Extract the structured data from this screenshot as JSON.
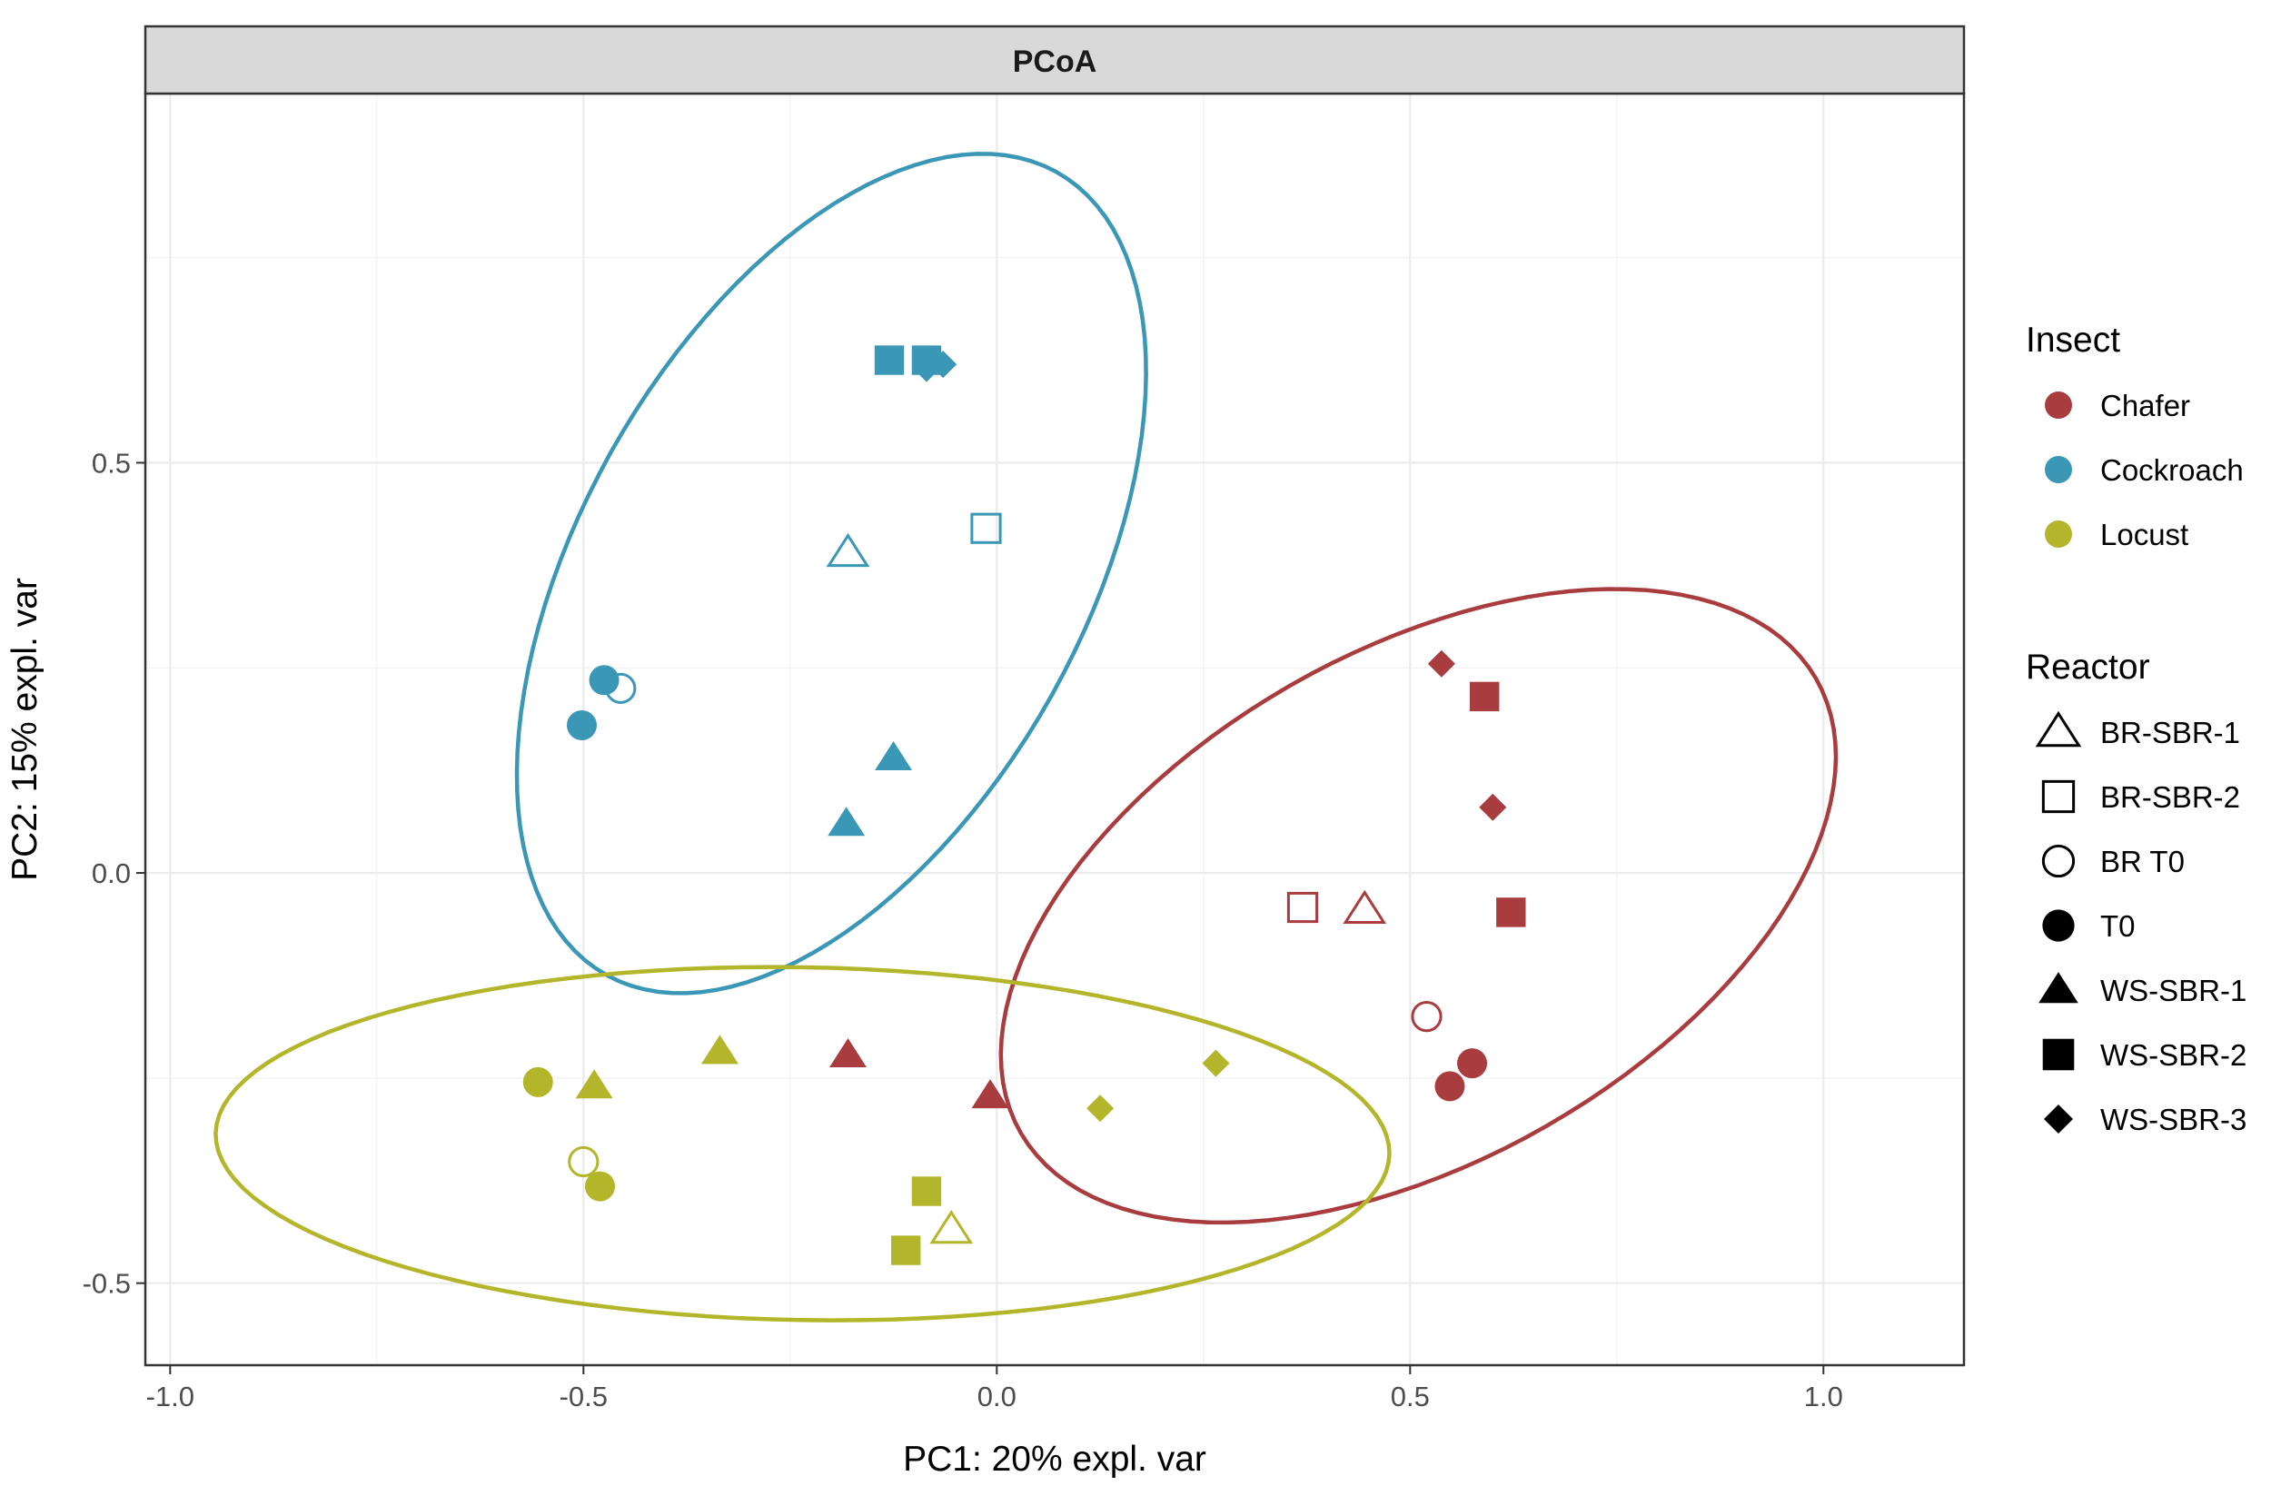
{
  "chart_data": {
    "type": "scatter",
    "title": "PCoA",
    "xlabel": "PC1: 20% expl. var",
    "ylabel": "PC2: 15% expl. var",
    "xlim": [
      -1.03,
      1.17
    ],
    "ylim": [
      -0.6,
      0.95
    ],
    "xticks": [
      {
        "value": -1.0,
        "label": "-1.0"
      },
      {
        "value": -0.5,
        "label": "-0.5"
      },
      {
        "value": 0.0,
        "label": "0.0"
      },
      {
        "value": 0.5,
        "label": "0.5"
      },
      {
        "value": 1.0,
        "label": "1.0"
      }
    ],
    "yticks": [
      {
        "value": -0.5,
        "label": "-0.5"
      },
      {
        "value": 0.0,
        "label": "0.0"
      },
      {
        "value": 0.5,
        "label": "0.5"
      }
    ],
    "grid": true,
    "insects": [
      {
        "name": "Chafer",
        "color": "#A93C3E"
      },
      {
        "name": "Cockroach",
        "color": "#3A97B6"
      },
      {
        "name": "Locust",
        "color": "#B3B62A"
      }
    ],
    "reactors": [
      {
        "name": "BR-SBR-1",
        "shape": "triangle-open"
      },
      {
        "name": "BR-SBR-2",
        "shape": "square-open"
      },
      {
        "name": "BR T0",
        "shape": "circle-open"
      },
      {
        "name": "T0",
        "shape": "circle"
      },
      {
        "name": "WS-SBR-1",
        "shape": "triangle"
      },
      {
        "name": "WS-SBR-2",
        "shape": "square"
      },
      {
        "name": "WS-SBR-3",
        "shape": "diamond"
      }
    ],
    "legend_titles": {
      "insect": "Insect",
      "reactor": "Reactor"
    },
    "legend_position": "right",
    "points": [
      {
        "insect": "Cockroach",
        "reactor": "WS-SBR-2",
        "x": -0.13,
        "y": 0.625
      },
      {
        "insect": "Cockroach",
        "reactor": "WS-SBR-2",
        "x": -0.085,
        "y": 0.625
      },
      {
        "insect": "Cockroach",
        "reactor": "WS-SBR-3",
        "x": -0.085,
        "y": 0.615
      },
      {
        "insect": "Cockroach",
        "reactor": "WS-SBR-3",
        "x": -0.065,
        "y": 0.62
      },
      {
        "insect": "Cockroach",
        "reactor": "BR-SBR-2",
        "x": -0.013,
        "y": 0.42
      },
      {
        "insect": "Cockroach",
        "reactor": "BR-SBR-1",
        "x": -0.18,
        "y": 0.39
      },
      {
        "insect": "Cockroach",
        "reactor": "T0",
        "x": -0.475,
        "y": 0.235
      },
      {
        "insect": "Cockroach",
        "reactor": "BR T0",
        "x": -0.455,
        "y": 0.225
      },
      {
        "insect": "Cockroach",
        "reactor": "T0",
        "x": -0.502,
        "y": 0.18
      },
      {
        "insect": "Cockroach",
        "reactor": "WS-SBR-1",
        "x": -0.125,
        "y": 0.14
      },
      {
        "insect": "Cockroach",
        "reactor": "WS-SBR-1",
        "x": -0.182,
        "y": 0.06
      },
      {
        "insect": "Chafer",
        "reactor": "WS-SBR-3",
        "x": 0.538,
        "y": 0.255
      },
      {
        "insect": "Chafer",
        "reactor": "WS-SBR-2",
        "x": 0.59,
        "y": 0.215
      },
      {
        "insect": "Chafer",
        "reactor": "WS-SBR-3",
        "x": 0.6,
        "y": 0.08
      },
      {
        "insect": "Chafer",
        "reactor": "BR-SBR-2",
        "x": 0.37,
        "y": -0.042
      },
      {
        "insect": "Chafer",
        "reactor": "BR-SBR-1",
        "x": 0.445,
        "y": -0.045
      },
      {
        "insect": "Chafer",
        "reactor": "WS-SBR-2",
        "x": 0.622,
        "y": -0.048
      },
      {
        "insect": "Chafer",
        "reactor": "BR T0",
        "x": 0.52,
        "y": -0.175
      },
      {
        "insect": "Chafer",
        "reactor": "T0",
        "x": 0.575,
        "y": -0.232
      },
      {
        "insect": "Chafer",
        "reactor": "T0",
        "x": 0.548,
        "y": -0.26
      },
      {
        "insect": "Chafer",
        "reactor": "WS-SBR-1",
        "x": -0.18,
        "y": -0.222
      },
      {
        "insect": "Chafer",
        "reactor": "WS-SBR-1",
        "x": -0.008,
        "y": -0.272
      },
      {
        "insect": "Locust",
        "reactor": "WS-SBR-1",
        "x": -0.335,
        "y": -0.218
      },
      {
        "insect": "Locust",
        "reactor": "T0",
        "x": -0.555,
        "y": -0.255
      },
      {
        "insect": "Locust",
        "reactor": "WS-SBR-1",
        "x": -0.487,
        "y": -0.26
      },
      {
        "insect": "Locust",
        "reactor": "WS-SBR-3",
        "x": 0.265,
        "y": -0.232
      },
      {
        "insect": "Locust",
        "reactor": "WS-SBR-3",
        "x": 0.125,
        "y": -0.287
      },
      {
        "insect": "Locust",
        "reactor": "BR T0",
        "x": -0.5,
        "y": -0.352
      },
      {
        "insect": "Locust",
        "reactor": "T0",
        "x": -0.48,
        "y": -0.382
      },
      {
        "insect": "Locust",
        "reactor": "WS-SBR-2",
        "x": -0.085,
        "y": -0.388
      },
      {
        "insect": "Locust",
        "reactor": "BR-SBR-1",
        "x": -0.055,
        "y": -0.435
      },
      {
        "insect": "Locust",
        "reactor": "WS-SBR-2",
        "x": -0.11,
        "y": -0.46
      }
    ],
    "ellipses": [
      {
        "insect": "Cockroach",
        "cx": -0.2,
        "cy": 0.365,
        "rx": 0.305,
        "ry": 0.56,
        "angle_deg": -29
      },
      {
        "insect": "Chafer",
        "cx": 0.51,
        "cy": -0.04,
        "rx": 0.555,
        "ry": 0.31,
        "angle_deg": 30
      },
      {
        "insect": "Locust",
        "cx": -0.235,
        "cy": -0.33,
        "rx": 0.71,
        "ry": 0.215,
        "angle_deg": -1
      }
    ]
  }
}
